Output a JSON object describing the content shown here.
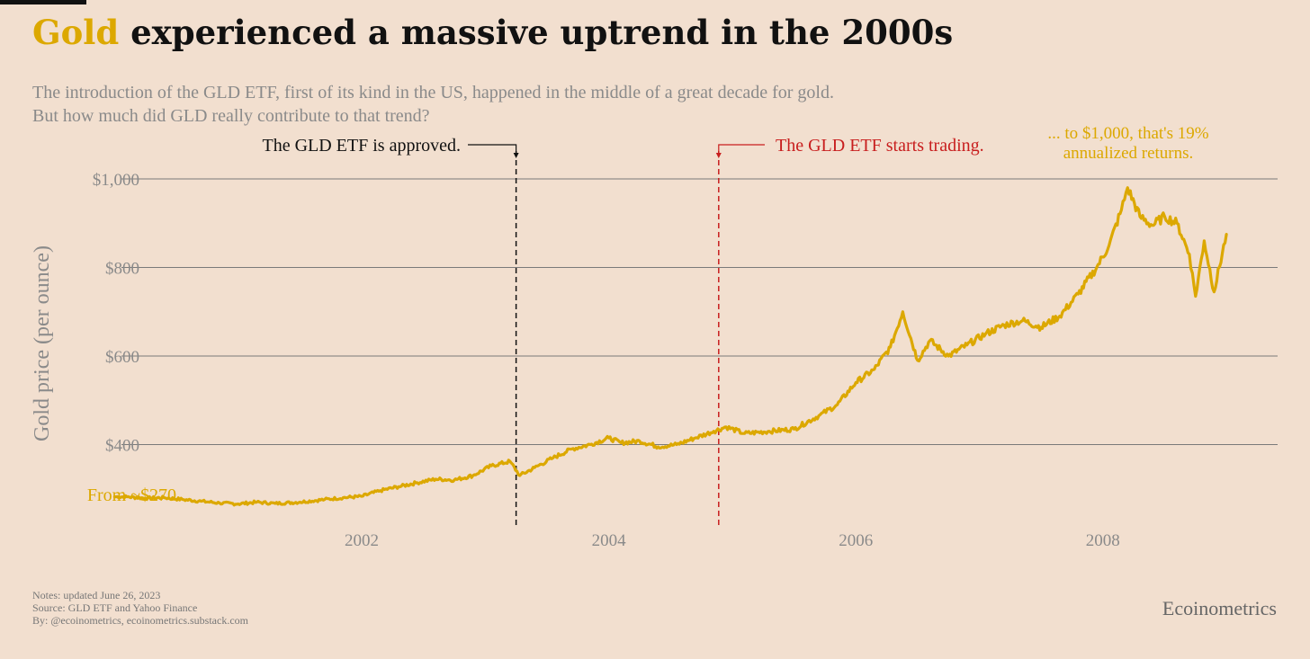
{
  "header": {
    "title_accent": "Gold",
    "title_rest": " experienced a massive uptrend in the 2000s",
    "subtitle_line1": "The introduction of the GLD ETF, first of its kind in the US, happened in the middle of a great decade for gold.",
    "subtitle_line2": "But how much did GLD really contribute to that trend?"
  },
  "footer": {
    "notes": "Notes: updated June 26, 2023",
    "source": "Source: GLD ETF and Yahoo Finance",
    "by": "By: @ecoinometrics, ecoinometrics.substack.com",
    "brand": "Ecoinometrics"
  },
  "colors": {
    "background": "#f2dfcf",
    "gold": "#dca800",
    "approved": "#111111",
    "trading": "#c81e1e",
    "grid": "#7a7a7a",
    "axis_text": "#8a8a8a"
  },
  "chart_data": {
    "type": "line",
    "title": "Gold experienced a massive uptrend in the 2000s",
    "xlabel": "",
    "ylabel": "Gold price (per ounce)",
    "xlim": [
      2000.3,
      2009.45
    ],
    "ylim": [
      220,
      1050
    ],
    "x_ticks": [
      2002,
      2004,
      2006,
      2008
    ],
    "x_tick_labels": [
      "2002",
      "2004",
      "2006",
      "2008"
    ],
    "y_ticks": [
      400,
      600,
      800,
      1000
    ],
    "y_tick_labels": [
      "$400",
      "$600",
      "$800",
      "$1,000"
    ],
    "grid": "horizontal",
    "series": [
      {
        "x": [
          2000.0,
          2000.1,
          2000.25,
          2000.4,
          2000.55,
          2000.7,
          2000.85,
          2001.0,
          2001.15,
          2001.3,
          2001.5,
          2001.7,
          2001.85,
          2002.0,
          2002.15,
          2002.3,
          2002.45,
          2002.6,
          2002.75,
          2002.9,
          2003.05,
          2003.2,
          2003.28,
          2003.4,
          2003.55,
          2003.7,
          2003.85,
          2004.0,
          2004.1,
          2004.25,
          2004.4,
          2004.55,
          2004.7,
          2004.85,
          2004.95,
          2005.1,
          2005.3,
          2005.5,
          2005.7,
          2005.85,
          2006.0,
          2006.15,
          2006.28,
          2006.38,
          2006.5,
          2006.6,
          2006.75,
          2006.9,
          2007.05,
          2007.2,
          2007.35,
          2007.5,
          2007.65,
          2007.8,
          2007.95,
          2008.05,
          2008.15,
          2008.2,
          2008.3,
          2008.4,
          2008.5,
          2008.6,
          2008.7,
          2008.75,
          2008.82,
          2008.9,
          2009.0
        ],
        "values": [
          282,
          282,
          279,
          280,
          276,
          272,
          268,
          266,
          270,
          267,
          270,
          276,
          280,
          283,
          296,
          305,
          314,
          322,
          320,
          330,
          352,
          362,
          330,
          348,
          370,
          390,
          400,
          415,
          404,
          408,
          395,
          400,
          415,
          430,
          440,
          425,
          430,
          435,
          465,
          490,
          540,
          570,
          620,
          700,
          590,
          635,
          600,
          625,
          650,
          670,
          680,
          665,
          690,
          740,
          800,
          850,
          930,
          980,
          915,
          895,
          915,
          900,
          830,
          735,
          860,
          745,
          875
        ]
      }
    ],
    "annotations": [
      {
        "text": "The GLD ETF is approved.",
        "x": 2003.25
      },
      {
        "text": "The GLD ETF starts trading.",
        "x": 2004.89
      },
      {
        "text": "From ~$270...",
        "x": 2000.0
      },
      {
        "text_line1": "... to $1,000, that's 19%",
        "text_line2": "annualized returns."
      }
    ]
  }
}
